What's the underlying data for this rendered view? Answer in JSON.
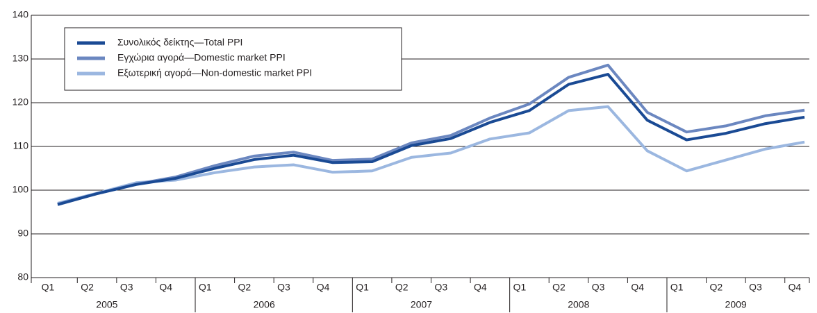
{
  "chart_data": {
    "type": "line",
    "categories": [
      "Q1",
      "Q2",
      "Q3",
      "Q4",
      "Q1",
      "Q2",
      "Q3",
      "Q4",
      "Q1",
      "Q2",
      "Q3",
      "Q4",
      "Q1",
      "Q2",
      "Q3",
      "Q4",
      "Q1",
      "Q2",
      "Q3",
      "Q4"
    ],
    "years": [
      "2005",
      "2006",
      "2007",
      "2008",
      "2009"
    ],
    "series": [
      {
        "name": "Συνολικός δείκτης—Total PPI",
        "color": "#1a4a94",
        "values": [
          96.7,
          99.2,
          101.3,
          102.7,
          105.0,
          107.0,
          108.0,
          106.3,
          106.5,
          110.2,
          111.8,
          115.5,
          118.2,
          124.2,
          126.5,
          116.0,
          111.5,
          113.0,
          115.2,
          116.7
        ]
      },
      {
        "name": "Εγχώρια αγορά—Domestic market PPI",
        "color": "#6b87c0",
        "values": [
          96.8,
          99.2,
          101.4,
          103.0,
          105.6,
          107.8,
          108.7,
          106.8,
          107.1,
          110.8,
          112.5,
          116.5,
          119.7,
          125.8,
          128.6,
          117.8,
          113.3,
          114.7,
          117.0,
          118.3
        ]
      },
      {
        "name": "Εξωτερική αγορά—Non-domestic market PPI",
        "color": "#9bb7e0",
        "values": [
          97.0,
          99.3,
          101.7,
          102.3,
          104.0,
          105.3,
          105.8,
          104.1,
          104.4,
          107.5,
          108.5,
          111.7,
          113.1,
          118.2,
          119.1,
          109.0,
          104.4,
          106.9,
          109.4,
          111.0
        ]
      }
    ],
    "ylim": [
      80,
      140
    ],
    "yticks": [
      80,
      90,
      100,
      110,
      120,
      130,
      140
    ],
    "grid": true,
    "legend": "upper left"
  }
}
